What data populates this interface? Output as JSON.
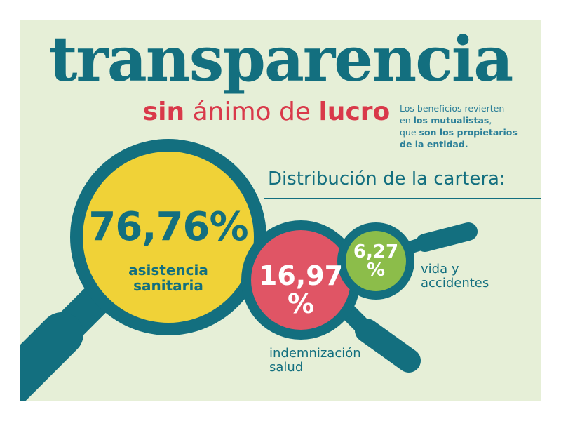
{
  "title": "transparencia",
  "subtitle": {
    "part1": "sin",
    "part2": "ánimo de",
    "part3": "lucro"
  },
  "note": {
    "line1": "Los beneficios revierten",
    "line2a": "en ",
    "line2b": "los mutualistas",
    "line2c": ",",
    "line3a": "que ",
    "line3b": "son los propietarios",
    "line4": "de la entidad."
  },
  "heading": "Distribución de la cartera:",
  "segments": [
    {
      "value_text": "76,76%",
      "value": 76.76,
      "label_line1": "asistencia",
      "label_line2": "sanitaria",
      "color": "#f0d237"
    },
    {
      "value_line1": "16,97",
      "value_line2": "%",
      "value": 16.97,
      "label_line1": "indemnización",
      "label_line2": "salud",
      "color": "#e05565"
    },
    {
      "value_line1": "6,27",
      "value_line2": "%",
      "value": 6.27,
      "label_line1": "vida y",
      "label_line2": "accidentes",
      "color": "#8cbd4a"
    }
  ],
  "colors": {
    "background": "#e6efd7",
    "frame": "#136f7f",
    "title": "#136f7f",
    "subtitle": "#d9394a",
    "note": "#2b7f98"
  }
}
